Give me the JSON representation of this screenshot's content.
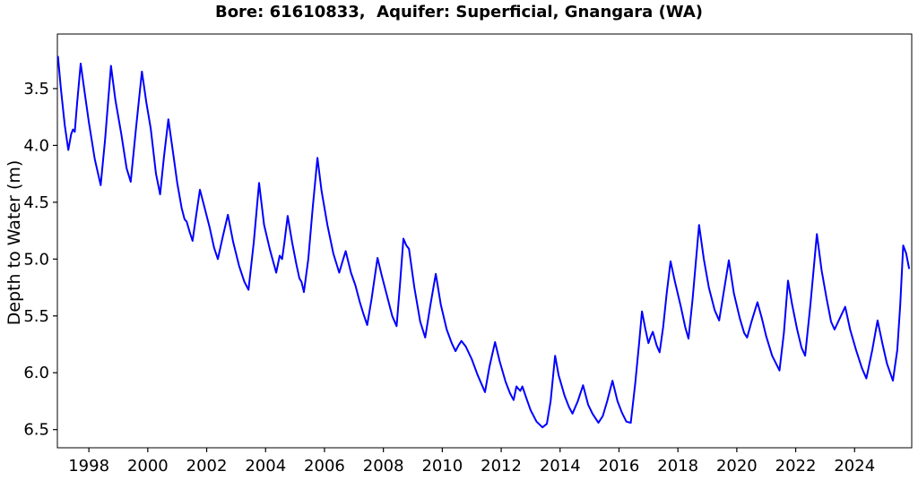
{
  "chart_data": {
    "type": "line",
    "title": "Bore: 61610833,  Aquifer: Superficial, Gnangara (WA)",
    "xlabel": "",
    "ylabel": "Depth to Water (m)",
    "y_axis_inverted": true,
    "grid": false,
    "legend": false,
    "line_color": "#0000FF",
    "axis_color": "#000000",
    "background_color": "#FFFFFF",
    "x_range": [
      1996.93,
      2025.94
    ],
    "y_range_top_to_bottom": [
      3.02,
      6.66
    ],
    "x_ticks": [
      {
        "v": 1998,
        "label": "1998"
      },
      {
        "v": 2000,
        "label": "2000"
      },
      {
        "v": 2002,
        "label": "2002"
      },
      {
        "v": 2004,
        "label": "2004"
      },
      {
        "v": 2006,
        "label": "2006"
      },
      {
        "v": 2008,
        "label": "2008"
      },
      {
        "v": 2010,
        "label": "2010"
      },
      {
        "v": 2012,
        "label": "2012"
      },
      {
        "v": 2014,
        "label": "2014"
      },
      {
        "v": 2016,
        "label": "2016"
      },
      {
        "v": 2018,
        "label": "2018"
      },
      {
        "v": 2020,
        "label": "2020"
      },
      {
        "v": 2022,
        "label": "2022"
      },
      {
        "v": 2024,
        "label": "2024"
      }
    ],
    "y_ticks": [
      {
        "v": 3.5,
        "label": "3.5"
      },
      {
        "v": 4.0,
        "label": "4.0"
      },
      {
        "v": 4.5,
        "label": "4.5"
      },
      {
        "v": 5.0,
        "label": "5.0"
      },
      {
        "v": 5.5,
        "label": "5.5"
      },
      {
        "v": 6.0,
        "label": "6.0"
      },
      {
        "v": 6.5,
        "label": "6.5"
      }
    ],
    "series": [
      {
        "points": [
          [
            1996.95,
            3.22
          ],
          [
            1997.05,
            3.5
          ],
          [
            1997.18,
            3.82
          ],
          [
            1997.3,
            4.04
          ],
          [
            1997.4,
            3.9
          ],
          [
            1997.46,
            3.86
          ],
          [
            1997.52,
            3.88
          ],
          [
            1997.6,
            3.63
          ],
          [
            1997.72,
            3.28
          ],
          [
            1997.85,
            3.52
          ],
          [
            1998.0,
            3.8
          ],
          [
            1998.2,
            4.12
          ],
          [
            1998.4,
            4.35
          ],
          [
            1998.55,
            3.95
          ],
          [
            1998.75,
            3.3
          ],
          [
            1998.9,
            3.6
          ],
          [
            1999.1,
            3.9
          ],
          [
            1999.28,
            4.2
          ],
          [
            1999.42,
            4.32
          ],
          [
            1999.6,
            3.85
          ],
          [
            1999.8,
            3.35
          ],
          [
            1999.95,
            3.62
          ],
          [
            2000.1,
            3.85
          ],
          [
            2000.28,
            4.25
          ],
          [
            2000.42,
            4.43
          ],
          [
            2000.55,
            4.1
          ],
          [
            2000.7,
            3.77
          ],
          [
            2000.85,
            4.05
          ],
          [
            2001.0,
            4.33
          ],
          [
            2001.15,
            4.55
          ],
          [
            2001.25,
            4.65
          ],
          [
            2001.32,
            4.67
          ],
          [
            2001.42,
            4.76
          ],
          [
            2001.52,
            4.84
          ],
          [
            2001.65,
            4.6
          ],
          [
            2001.77,
            4.39
          ],
          [
            2001.9,
            4.52
          ],
          [
            2002.1,
            4.72
          ],
          [
            2002.25,
            4.9
          ],
          [
            2002.38,
            5.0
          ],
          [
            2002.55,
            4.8
          ],
          [
            2002.72,
            4.61
          ],
          [
            2002.9,
            4.85
          ],
          [
            2003.1,
            5.06
          ],
          [
            2003.28,
            5.2
          ],
          [
            2003.42,
            5.27
          ],
          [
            2003.6,
            4.85
          ],
          [
            2003.78,
            4.33
          ],
          [
            2003.95,
            4.7
          ],
          [
            2004.15,
            4.92
          ],
          [
            2004.36,
            5.12
          ],
          [
            2004.48,
            4.97
          ],
          [
            2004.56,
            5.0
          ],
          [
            2004.64,
            4.85
          ],
          [
            2004.75,
            4.62
          ],
          [
            2004.9,
            4.85
          ],
          [
            2005.05,
            5.05
          ],
          [
            2005.15,
            5.17
          ],
          [
            2005.22,
            5.2
          ],
          [
            2005.3,
            5.29
          ],
          [
            2005.45,
            5.0
          ],
          [
            2005.6,
            4.55
          ],
          [
            2005.76,
            4.11
          ],
          [
            2005.9,
            4.4
          ],
          [
            2006.1,
            4.7
          ],
          [
            2006.3,
            4.95
          ],
          [
            2006.5,
            5.12
          ],
          [
            2006.6,
            5.03
          ],
          [
            2006.72,
            4.93
          ],
          [
            2006.9,
            5.12
          ],
          [
            2007.05,
            5.23
          ],
          [
            2007.2,
            5.38
          ],
          [
            2007.32,
            5.48
          ],
          [
            2007.45,
            5.58
          ],
          [
            2007.6,
            5.35
          ],
          [
            2007.8,
            4.99
          ],
          [
            2007.95,
            5.15
          ],
          [
            2008.15,
            5.35
          ],
          [
            2008.3,
            5.5
          ],
          [
            2008.45,
            5.59
          ],
          [
            2008.57,
            5.2
          ],
          [
            2008.68,
            4.82
          ],
          [
            2008.78,
            4.88
          ],
          [
            2008.87,
            4.91
          ],
          [
            2009.05,
            5.25
          ],
          [
            2009.25,
            5.55
          ],
          [
            2009.42,
            5.69
          ],
          [
            2009.6,
            5.4
          ],
          [
            2009.78,
            5.13
          ],
          [
            2009.95,
            5.4
          ],
          [
            2010.15,
            5.62
          ],
          [
            2010.32,
            5.74
          ],
          [
            2010.45,
            5.81
          ],
          [
            2010.55,
            5.76
          ],
          [
            2010.65,
            5.72
          ],
          [
            2010.8,
            5.77
          ],
          [
            2011.0,
            5.88
          ],
          [
            2011.2,
            6.02
          ],
          [
            2011.45,
            6.17
          ],
          [
            2011.6,
            5.95
          ],
          [
            2011.79,
            5.73
          ],
          [
            2011.95,
            5.9
          ],
          [
            2012.15,
            6.08
          ],
          [
            2012.3,
            6.18
          ],
          [
            2012.42,
            6.24
          ],
          [
            2012.52,
            6.12
          ],
          [
            2012.58,
            6.14
          ],
          [
            2012.65,
            6.16
          ],
          [
            2012.72,
            6.12
          ],
          [
            2012.85,
            6.22
          ],
          [
            2013.0,
            6.33
          ],
          [
            2013.2,
            6.43
          ],
          [
            2013.4,
            6.48
          ],
          [
            2013.55,
            6.45
          ],
          [
            2013.68,
            6.25
          ],
          [
            2013.83,
            5.85
          ],
          [
            2013.95,
            6.02
          ],
          [
            2014.15,
            6.2
          ],
          [
            2014.3,
            6.3
          ],
          [
            2014.42,
            6.36
          ],
          [
            2014.6,
            6.25
          ],
          [
            2014.78,
            6.11
          ],
          [
            2014.95,
            6.28
          ],
          [
            2015.1,
            6.36
          ],
          [
            2015.3,
            6.44
          ],
          [
            2015.45,
            6.38
          ],
          [
            2015.6,
            6.25
          ],
          [
            2015.78,
            6.07
          ],
          [
            2015.95,
            6.25
          ],
          [
            2016.1,
            6.35
          ],
          [
            2016.25,
            6.43
          ],
          [
            2016.4,
            6.44
          ],
          [
            2016.55,
            6.1
          ],
          [
            2016.68,
            5.75
          ],
          [
            2016.78,
            5.46
          ],
          [
            2016.9,
            5.62
          ],
          [
            2017.0,
            5.74
          ],
          [
            2017.08,
            5.68
          ],
          [
            2017.15,
            5.64
          ],
          [
            2017.28,
            5.76
          ],
          [
            2017.38,
            5.82
          ],
          [
            2017.5,
            5.6
          ],
          [
            2017.62,
            5.3
          ],
          [
            2017.75,
            5.02
          ],
          [
            2017.9,
            5.2
          ],
          [
            2018.1,
            5.42
          ],
          [
            2018.25,
            5.6
          ],
          [
            2018.36,
            5.7
          ],
          [
            2018.5,
            5.35
          ],
          [
            2018.72,
            4.7
          ],
          [
            2018.88,
            5.0
          ],
          [
            2019.05,
            5.25
          ],
          [
            2019.25,
            5.45
          ],
          [
            2019.4,
            5.54
          ],
          [
            2019.55,
            5.3
          ],
          [
            2019.73,
            5.01
          ],
          [
            2019.9,
            5.3
          ],
          [
            2020.1,
            5.52
          ],
          [
            2020.25,
            5.65
          ],
          [
            2020.35,
            5.69
          ],
          [
            2020.5,
            5.55
          ],
          [
            2020.7,
            5.38
          ],
          [
            2020.85,
            5.52
          ],
          [
            2021.0,
            5.68
          ],
          [
            2021.2,
            5.85
          ],
          [
            2021.45,
            5.98
          ],
          [
            2021.6,
            5.65
          ],
          [
            2021.74,
            5.19
          ],
          [
            2021.88,
            5.4
          ],
          [
            2022.05,
            5.62
          ],
          [
            2022.2,
            5.78
          ],
          [
            2022.32,
            5.85
          ],
          [
            2022.5,
            5.4
          ],
          [
            2022.72,
            4.78
          ],
          [
            2022.88,
            5.1
          ],
          [
            2023.05,
            5.35
          ],
          [
            2023.2,
            5.55
          ],
          [
            2023.32,
            5.62
          ],
          [
            2023.5,
            5.52
          ],
          [
            2023.68,
            5.42
          ],
          [
            2023.85,
            5.62
          ],
          [
            2024.05,
            5.8
          ],
          [
            2024.25,
            5.96
          ],
          [
            2024.4,
            6.05
          ],
          [
            2024.6,
            5.8
          ],
          [
            2024.78,
            5.54
          ],
          [
            2024.95,
            5.75
          ],
          [
            2025.1,
            5.92
          ],
          [
            2025.3,
            6.07
          ],
          [
            2025.45,
            5.8
          ],
          [
            2025.55,
            5.4
          ],
          [
            2025.65,
            4.88
          ],
          [
            2025.75,
            4.95
          ],
          [
            2025.85,
            5.08
          ]
        ]
      }
    ]
  }
}
